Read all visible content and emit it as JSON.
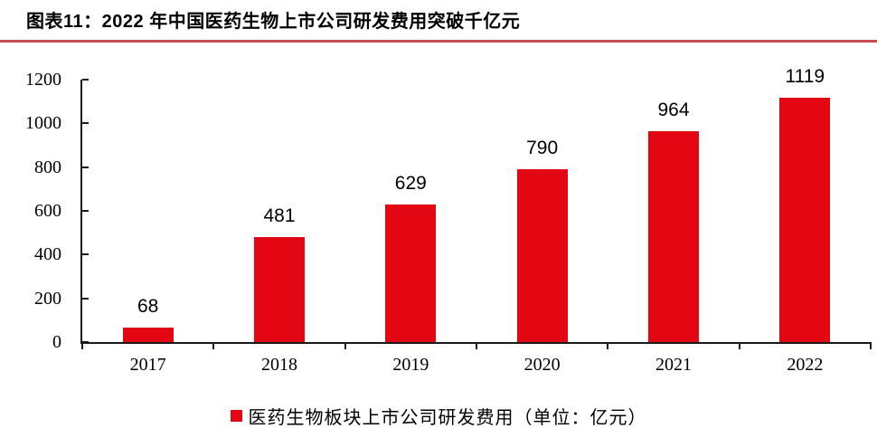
{
  "header": {
    "title": "图表11：2022 年中国医药生物上市公司研发费用突破千亿元"
  },
  "chart_data": {
    "type": "bar",
    "title": "图表11：2022 年中国医药生物上市公司研发费用突破千亿元",
    "categories": [
      "2017",
      "2018",
      "2019",
      "2020",
      "2021",
      "2022"
    ],
    "values": [
      68,
      481,
      629,
      790,
      964,
      1119
    ],
    "legend": [
      "医药生物板块上市公司研发费用（单位：亿元）"
    ],
    "legend_position": "bottom",
    "data_labels": true,
    "xlabel": "",
    "ylabel": "",
    "ylim": [
      0,
      1200
    ],
    "yticks": [
      0,
      200,
      400,
      600,
      800,
      1000,
      1200
    ],
    "grid": false,
    "colors": {
      "bar": "#e30613",
      "axis": "#1a1a1a",
      "text": "#000000"
    }
  },
  "divider": {
    "color": "#c6504e"
  }
}
